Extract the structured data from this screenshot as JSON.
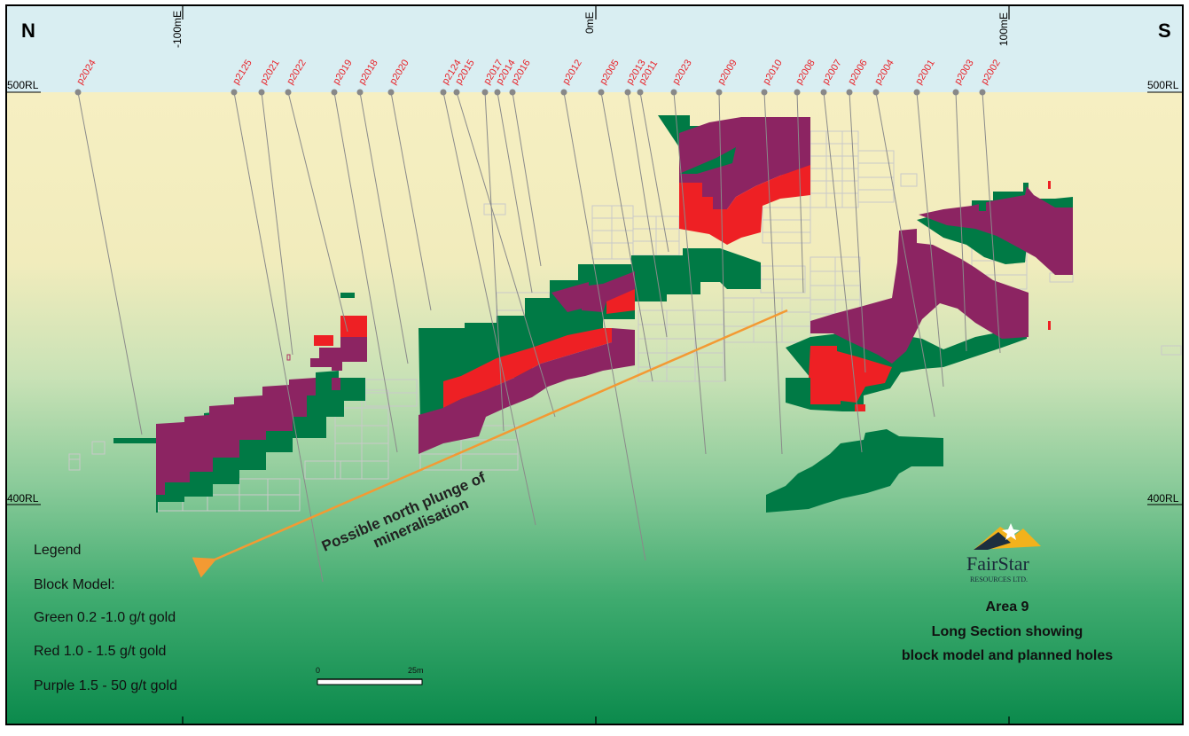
{
  "compass": {
    "north": "N",
    "south": "S"
  },
  "eastings": [
    "-100mE",
    "0mE",
    "100mE"
  ],
  "reduced_levels": {
    "top": "500RL",
    "bottom": "400RL"
  },
  "holes": [
    "p2024",
    "p2125",
    "p2021",
    "p2022",
    "p2019",
    "p2018",
    "p2020",
    "p2124",
    "p2015",
    "p2017",
    "p2014",
    "p2016",
    "p2012",
    "p2005",
    "p2013",
    "p2011",
    "p2023",
    "p2009",
    "p2010",
    "p2008",
    "p2007",
    "p2006",
    "p2004",
    "p2001",
    "p2003",
    "p2002"
  ],
  "annotation": {
    "line1": "Possible north plunge of",
    "line2": "mineralisation"
  },
  "legend": {
    "heading": "Legend",
    "subheading": "Block Model:",
    "green": "Green 0.2 -1.0 g/t gold",
    "red": "Red 1.0 - 1.5 g/t gold",
    "purple": "Purple 1.5 - 50 g/t gold"
  },
  "scale": {
    "start": "0",
    "end": "25m"
  },
  "logo": {
    "name": "FairStar",
    "sub": "RESOURCES LTD."
  },
  "title": {
    "line1": "Area 9",
    "line2": "Long Section showing",
    "line3": "block model and planned holes"
  },
  "colors": {
    "green": "#007a45",
    "red": "#ee2024",
    "purple": "#8c2462",
    "arrow": "#f39a33",
    "hole_label": "#e8232a",
    "sky": "#d9eef2"
  }
}
